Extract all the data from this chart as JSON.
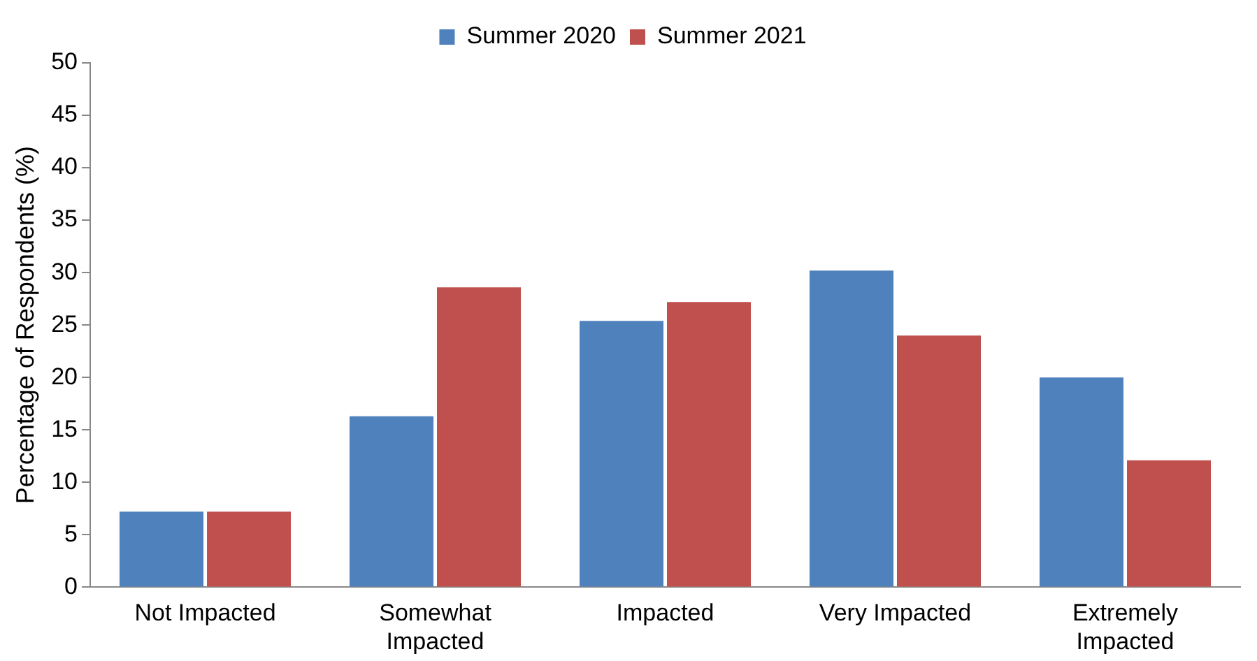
{
  "chart_data": {
    "type": "bar",
    "ylabel": "Percentage of Respondents (%)",
    "categories": [
      "Not Impacted",
      "Somewhat Impacted",
      "Impacted",
      "Very Impacted",
      "Extremely Impacted"
    ],
    "series": [
      {
        "name": "Summer 2020",
        "color": "#4f81bd",
        "values": [
          7.2,
          16.3,
          25.4,
          30.2,
          20.0
        ]
      },
      {
        "name": "Summer 2021",
        "color": "#c0504d",
        "values": [
          7.2,
          28.6,
          27.2,
          24.0,
          12.1
        ]
      }
    ],
    "ylim": [
      0,
      50
    ],
    "yticks": [
      0,
      5,
      10,
      15,
      20,
      25,
      30,
      35,
      40,
      45,
      50
    ],
    "grid": false,
    "legend": "top"
  }
}
